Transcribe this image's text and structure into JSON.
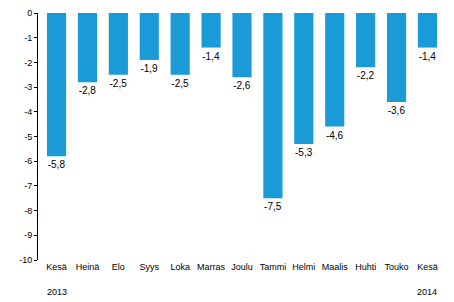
{
  "chart_data": {
    "type": "bar",
    "categories": [
      "Kesä",
      "Heinä",
      "Elo",
      "Syys",
      "Loka",
      "Marras",
      "Joulu",
      "Tammi",
      "Helmi",
      "Maalis",
      "Huhti",
      "Touko",
      "Kesä"
    ],
    "values": [
      -5.8,
      -2.8,
      -2.5,
      -1.9,
      -2.5,
      -1.4,
      -2.6,
      -7.5,
      -5.3,
      -4.6,
      -2.2,
      -3.6,
      -1.4
    ],
    "value_labels": [
      "-5,8",
      "-2,8",
      "-2,5",
      "-1,9",
      "-2,5",
      "-1,4",
      "-2,6",
      "-7,5",
      "-5,3",
      "-4,6",
      "-2,2",
      "-3,6",
      "-1,4"
    ],
    "color": "#1a9ad6",
    "ylim": [
      -10,
      0
    ],
    "yticks": [
      -10,
      -9,
      -8,
      -7,
      -6,
      -5,
      -4,
      -3,
      -2,
      -1,
      0
    ],
    "grid": false,
    "data_labels": true,
    "annotations": [
      {
        "text": "2013",
        "category": 0
      },
      {
        "text": "2014",
        "category": 12
      }
    ]
  }
}
